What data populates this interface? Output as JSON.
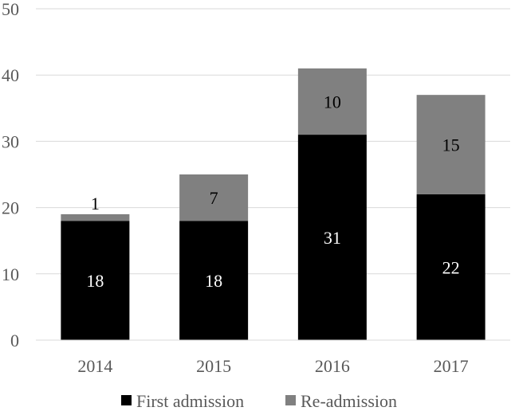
{
  "chart_data": {
    "type": "bar",
    "stacked": true,
    "title": "",
    "xlabel": "",
    "ylabel": "",
    "categories": [
      "2014",
      "2015",
      "2016",
      "2017"
    ],
    "series": [
      {
        "name": "First admission",
        "values": [
          18,
          18,
          31,
          22
        ],
        "color": "#000000",
        "label_color": "#ffffff"
      },
      {
        "name": "Re-admission",
        "values": [
          1,
          7,
          10,
          15
        ],
        "color": "#808080",
        "label_color": "#000000"
      }
    ],
    "ylim": [
      0,
      50
    ],
    "yticks": [
      "0",
      "10",
      "20",
      "30",
      "40",
      "50"
    ],
    "grid": true,
    "gridline_color": "#d9d9d9",
    "legend": {
      "placement": "bottom"
    }
  }
}
